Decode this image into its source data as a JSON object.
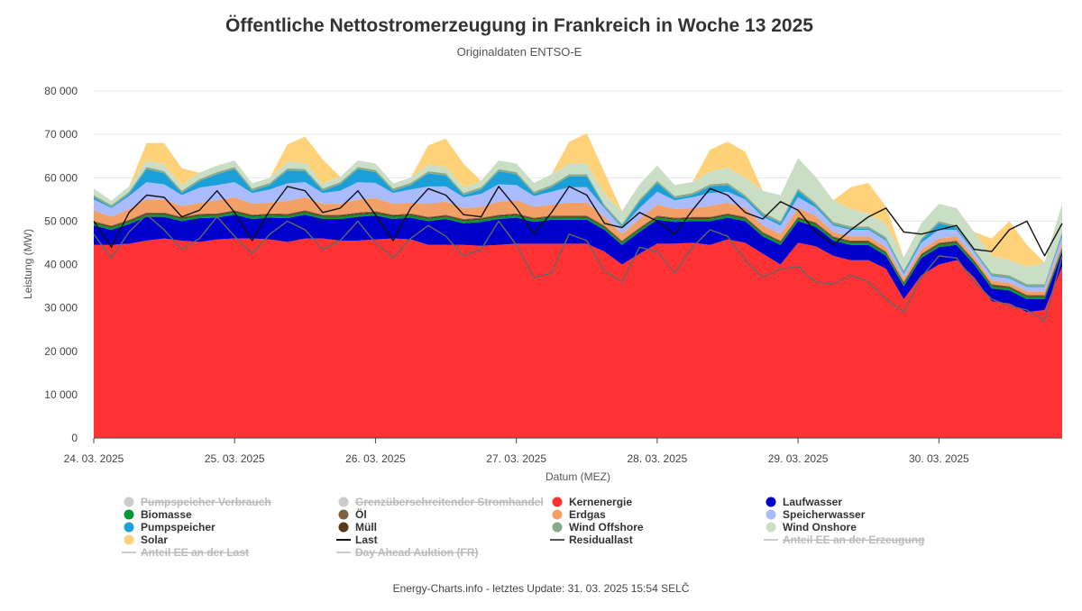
{
  "chart_data": {
    "type": "area",
    "stacked": true,
    "title": "Öffentliche Nettostromerzeugung in Frankreich in Woche 13 2025",
    "subtitle": "Originaldaten ENTSO-E",
    "xlabel": "Datum (MEZ)",
    "ylabel": "Leistung (MW)",
    "ylim": [
      0,
      80000
    ],
    "yticks": [
      0,
      10000,
      20000,
      30000,
      40000,
      50000,
      60000,
      70000,
      80000
    ],
    "ytick_labels": [
      "0",
      "10 000",
      "20 000",
      "30 000",
      "40 000",
      "50 000",
      "60 000",
      "70 000",
      "80 000"
    ],
    "x_unit": "hours since 24.03.2025 00:00",
    "xlim": [
      0,
      165
    ],
    "xticks": [
      0,
      24,
      48,
      72,
      96,
      120,
      144
    ],
    "xtick_labels": [
      "24. 03. 2025",
      "25. 03. 2025",
      "26. 03. 2025",
      "27. 03. 2025",
      "28. 03. 2025",
      "29. 03. 2025",
      "30. 03. 2025"
    ],
    "grid": true,
    "legend_position": "bottom",
    "footer": "Energy-Charts.info - letztes Update: 31. 03. 2025 15:54 SELČ",
    "x": [
      0,
      3,
      6,
      9,
      12,
      15,
      18,
      21,
      24,
      27,
      30,
      33,
      36,
      39,
      42,
      45,
      48,
      51,
      54,
      57,
      60,
      63,
      66,
      69,
      72,
      75,
      78,
      81,
      84,
      87,
      90,
      93,
      96,
      99,
      102,
      105,
      108,
      111,
      114,
      117,
      120,
      123,
      126,
      129,
      132,
      135,
      138,
      141,
      144,
      147,
      150,
      153,
      156,
      159,
      162,
      165
    ],
    "series": [
      {
        "name": "Kernenergie",
        "color": "#ff3333",
        "values": [
          44500,
          44500,
          44800,
          45500,
          46000,
          45500,
          45200,
          45800,
          46000,
          46000,
          45800,
          45200,
          46000,
          46000,
          45500,
          45500,
          45800,
          46000,
          45800,
          44500,
          44500,
          44500,
          44300,
          44500,
          44800,
          44800,
          44800,
          44800,
          44800,
          43000,
          40000,
          42500,
          44800,
          44800,
          45000,
          44500,
          45800,
          45000,
          42500,
          40000,
          45000,
          44200,
          42000,
          41000,
          41000,
          39000,
          32000,
          37500,
          40000,
          41000,
          37000,
          31500,
          31000,
          29000,
          29500,
          39500
        ]
      },
      {
        "name": "Laufwasser",
        "color": "#0000cc",
        "values": [
          4500,
          3500,
          4500,
          5500,
          5000,
          4500,
          5500,
          5000,
          5500,
          4500,
          5000,
          5500,
          5500,
          4500,
          5000,
          5500,
          5500,
          4500,
          5000,
          5500,
          6000,
          5000,
          5500,
          6000,
          6000,
          5000,
          5500,
          5500,
          5500,
          5000,
          4500,
          5000,
          5500,
          5000,
          5000,
          5500,
          5000,
          5000,
          4000,
          4500,
          5000,
          4500,
          3500,
          3500,
          3500,
          3000,
          3000,
          4000,
          4000,
          3500,
          3000,
          3000,
          3000,
          3000,
          2500,
          3500
        ]
      },
      {
        "name": "Biomasse",
        "color": "#009933",
        "values": [
          500,
          500,
          500,
          500,
          500,
          500,
          500,
          500,
          500,
          500,
          500,
          500,
          500,
          500,
          500,
          500,
          500,
          500,
          500,
          500,
          500,
          500,
          500,
          500,
          500,
          500,
          500,
          500,
          500,
          500,
          500,
          500,
          500,
          500,
          500,
          500,
          500,
          500,
          500,
          500,
          500,
          500,
          500,
          500,
          500,
          500,
          500,
          500,
          500,
          500,
          500,
          500,
          500,
          500,
          500,
          500
        ]
      },
      {
        "name": "Müll",
        "color": "#5a3a14",
        "values": [
          300,
          300,
          300,
          300,
          300,
          300,
          300,
          300,
          300,
          300,
          300,
          300,
          300,
          300,
          300,
          300,
          300,
          300,
          300,
          300,
          300,
          300,
          300,
          300,
          300,
          300,
          300,
          300,
          300,
          300,
          300,
          300,
          300,
          300,
          300,
          300,
          300,
          300,
          300,
          300,
          300,
          300,
          300,
          300,
          300,
          300,
          300,
          300,
          300,
          300,
          300,
          300,
          300,
          300,
          300,
          300
        ]
      },
      {
        "name": "Öl",
        "color": "#806040",
        "values": [
          200,
          200,
          200,
          200,
          200,
          200,
          200,
          200,
          200,
          200,
          200,
          200,
          200,
          200,
          200,
          200,
          200,
          200,
          200,
          200,
          200,
          200,
          200,
          200,
          200,
          200,
          200,
          200,
          200,
          200,
          200,
          200,
          200,
          200,
          200,
          200,
          200,
          200,
          200,
          200,
          200,
          200,
          200,
          200,
          200,
          200,
          200,
          200,
          200,
          200,
          200,
          200,
          200,
          200,
          200,
          200
        ]
      },
      {
        "name": "Erdgas",
        "color": "#f2a065",
        "values": [
          2500,
          2000,
          2500,
          3000,
          3000,
          2500,
          2500,
          3000,
          3000,
          2500,
          2500,
          3000,
          3000,
          2500,
          2500,
          3000,
          3000,
          2500,
          2500,
          3000,
          3000,
          2500,
          2500,
          3000,
          3000,
          2500,
          2500,
          3000,
          3000,
          2000,
          1500,
          2000,
          2500,
          2000,
          2000,
          2500,
          2500,
          2000,
          1500,
          1500,
          2000,
          1500,
          1000,
          1000,
          1000,
          1000,
          800,
          1000,
          1000,
          1000,
          800,
          800,
          800,
          800,
          800,
          1000
        ]
      },
      {
        "name": "Speicherwasser",
        "color": "#aabbff",
        "values": [
          2500,
          2000,
          3000,
          4000,
          3500,
          2500,
          3500,
          3500,
          3500,
          2500,
          3000,
          4000,
          3500,
          2500,
          3000,
          4000,
          3500,
          2500,
          3000,
          4000,
          3500,
          2500,
          3000,
          4000,
          3500,
          2500,
          3000,
          3500,
          3500,
          2000,
          1500,
          2500,
          3000,
          2000,
          2500,
          3000,
          2500,
          2000,
          2000,
          2000,
          2500,
          2000,
          1500,
          1500,
          1500,
          1500,
          1000,
          1500,
          2000,
          1500,
          1000,
          1000,
          1000,
          1000,
          1000,
          1500
        ]
      },
      {
        "name": "Pumpspeicher",
        "color": "#1a9fd8",
        "values": [
          500,
          200,
          500,
          3000,
          2500,
          500,
          1500,
          2500,
          3000,
          500,
          1000,
          3000,
          2500,
          500,
          1500,
          3000,
          2500,
          500,
          1000,
          3000,
          2500,
          500,
          1000,
          3000,
          2500,
          500,
          1000,
          2500,
          2500,
          300,
          300,
          1500,
          2000,
          500,
          500,
          1500,
          1500,
          500,
          500,
          500,
          1500,
          500,
          300,
          300,
          300,
          300,
          300,
          500,
          1500,
          500,
          200,
          200,
          200,
          200,
          200,
          500
        ]
      },
      {
        "name": "Wind Offshore",
        "color": "#88aa88",
        "values": [
          500,
          500,
          500,
          500,
          500,
          500,
          500,
          500,
          500,
          500,
          500,
          500,
          500,
          500,
          500,
          500,
          500,
          500,
          500,
          500,
          500,
          500,
          500,
          500,
          500,
          500,
          500,
          500,
          500,
          500,
          500,
          500,
          500,
          500,
          500,
          500,
          500,
          500,
          500,
          500,
          500,
          500,
          500,
          500,
          500,
          500,
          500,
          500,
          500,
          500,
          500,
          500,
          500,
          500,
          500,
          500
        ]
      },
      {
        "name": "Wind Onshore",
        "color": "#c9dec4",
        "values": [
          1500,
          1000,
          1200,
          1500,
          1500,
          1200,
          1500,
          1500,
          1500,
          1200,
          1200,
          1500,
          1500,
          1200,
          1200,
          1500,
          1500,
          1200,
          1200,
          1500,
          1500,
          1200,
          1500,
          2000,
          2000,
          2000,
          2500,
          2500,
          2500,
          2500,
          3000,
          3500,
          3500,
          2500,
          2500,
          3000,
          3500,
          4000,
          5000,
          6000,
          7000,
          6000,
          5000,
          4000,
          3000,
          3000,
          3000,
          3500,
          4000,
          4000,
          4000,
          4000,
          3500,
          4000,
          5000,
          6500
        ]
      },
      {
        "name": "Solar",
        "color": "#ffd27a",
        "values": [
          0,
          0,
          0,
          4000,
          5000,
          4000,
          0,
          0,
          0,
          0,
          0,
          4000,
          6000,
          5500,
          0,
          0,
          0,
          0,
          0,
          4500,
          6500,
          5500,
          0,
          0,
          0,
          0,
          0,
          5000,
          7000,
          5000,
          0,
          0,
          0,
          0,
          0,
          5000,
          6000,
          6000,
          0,
          0,
          0,
          0,
          0,
          5000,
          7000,
          4000,
          0,
          0,
          0,
          0,
          0,
          4000,
          9000,
          5000,
          0,
          0
        ]
      }
    ],
    "lines": [
      {
        "name": "Last",
        "color": "#111111",
        "values": [
          50000,
          44000,
          52000,
          56000,
          55500,
          51000,
          52500,
          57000,
          52000,
          45500,
          52500,
          58000,
          57000,
          52000,
          53000,
          57000,
          51500,
          45500,
          53000,
          57500,
          56000,
          51500,
          51000,
          58000,
          53000,
          47000,
          52000,
          58000,
          56000,
          49500,
          48500,
          52000,
          50000,
          47000,
          52500,
          57500,
          56000,
          52000,
          50500,
          54500,
          52500,
          47500,
          44500,
          48000,
          51000,
          53000,
          47500,
          47000,
          48000,
          49000,
          43500,
          43000,
          48000,
          50000,
          42000,
          49500
        ]
      },
      {
        "name": "Residuallast",
        "color": "#666666",
        "values": [
          47000,
          41500,
          47500,
          51500,
          48000,
          43500,
          46000,
          51000,
          46500,
          42500,
          47000,
          50000,
          48000,
          43500,
          45500,
          50000,
          45000,
          41500,
          46000,
          49000,
          46500,
          42000,
          43500,
          50000,
          44500,
          37000,
          38000,
          47000,
          45500,
          38500,
          36000,
          44000,
          43000,
          38000,
          44000,
          48000,
          46500,
          41000,
          37000,
          39000,
          39500,
          36000,
          35500,
          37500,
          36000,
          32000,
          29000,
          37000,
          42000,
          41500,
          36000,
          32000,
          30500,
          29500,
          27000,
          42000
        ]
      }
    ],
    "legend": [
      {
        "label": "Pumpspeicher Verbrauch",
        "color": "#c8c8c8",
        "type": "dot",
        "hidden": true
      },
      {
        "label": "Grenzüberschreitender Stromhandel",
        "color": "#c8c8c8",
        "type": "dot",
        "hidden": true
      },
      {
        "label": "Kernenergie",
        "color": "#ff3333",
        "type": "dot",
        "hidden": false
      },
      {
        "label": "Laufwasser",
        "color": "#0000cc",
        "type": "dot",
        "hidden": false
      },
      {
        "label": "Biomasse",
        "color": "#009933",
        "type": "dot",
        "hidden": false
      },
      {
        "label": "Öl",
        "color": "#806040",
        "type": "dot",
        "hidden": false
      },
      {
        "label": "Erdgas",
        "color": "#f2a065",
        "type": "dot",
        "hidden": false
      },
      {
        "label": "Speicherwasser",
        "color": "#aabbff",
        "type": "dot",
        "hidden": false
      },
      {
        "label": "Pumpspeicher",
        "color": "#1a9fd8",
        "type": "dot",
        "hidden": false
      },
      {
        "label": "Müll",
        "color": "#5a3a14",
        "type": "dot",
        "hidden": false
      },
      {
        "label": "Wind Offshore",
        "color": "#88aa88",
        "type": "dot",
        "hidden": false
      },
      {
        "label": "Wind Onshore",
        "color": "#c9dec4",
        "type": "dot",
        "hidden": false
      },
      {
        "label": "Solar",
        "color": "#ffd27a",
        "type": "dot",
        "hidden": false
      },
      {
        "label": "Last",
        "color": "#111111",
        "type": "line",
        "hidden": false
      },
      {
        "label": "Residuallast",
        "color": "#555555",
        "type": "line",
        "hidden": false
      },
      {
        "label": "Anteil EE an der Erzeugung",
        "color": "#c8c8c8",
        "type": "line",
        "hidden": true
      },
      {
        "label": "Anteil EE an der Last",
        "color": "#c8c8c8",
        "type": "line",
        "hidden": true
      },
      {
        "label": "Day Ahead Auktion (FR)",
        "color": "#c8c8c8",
        "type": "line",
        "hidden": true
      }
    ]
  }
}
